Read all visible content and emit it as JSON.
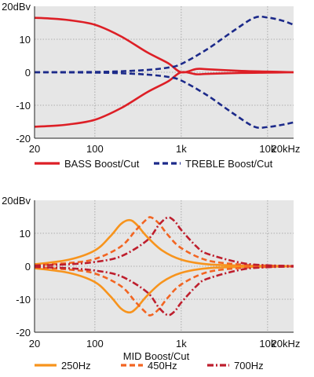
{
  "chart_data": [
    {
      "type": "line",
      "title": "",
      "xlabel": "",
      "ylabel": "",
      "x_scale": "log",
      "xlim": [
        20,
        20000
      ],
      "ylim": [
        -20,
        20
      ],
      "x_ticks": [
        20,
        100,
        1000,
        10000,
        20000
      ],
      "x_tick_labels": [
        "20",
        "100",
        "1k",
        "10k",
        "20kHz"
      ],
      "y_ticks": [
        20,
        10,
        0,
        -10,
        -20
      ],
      "y_tick_labels": [
        "20dBv",
        "10",
        "0",
        "-10",
        "-20"
      ],
      "grid": true,
      "legend_position": "below",
      "legend": [
        {
          "label": "BASS Boost/Cut",
          "color": "#dd1f26",
          "dash": "solid"
        },
        {
          "label": "TREBLE Boost/Cut",
          "color": "#1c2a8a",
          "dash": "dashed"
        }
      ],
      "series": [
        {
          "name": "BASS Boost/Cut",
          "color": "#dd1f26",
          "dash": "solid",
          "x": [
            20,
            30,
            50,
            100,
            200,
            400,
            700,
            1000,
            1500,
            2000,
            5000,
            10000,
            20000
          ],
          "y": [
            16.5,
            16.3,
            15.8,
            14.4,
            10.9,
            6.1,
            2.8,
            0.0,
            1.0,
            0.9,
            0.4,
            0.2,
            0.0
          ]
        },
        {
          "name": "BASS Boost/Cut",
          "color": "#dd1f26",
          "dash": "solid",
          "x": [
            20,
            30,
            50,
            100,
            200,
            400,
            700,
            1000,
            1500,
            2000,
            5000,
            10000,
            20000
          ],
          "y": [
            -16.5,
            -16.3,
            -15.8,
            -14.4,
            -10.9,
            -6.1,
            -2.8,
            0.0,
            -0.6,
            -0.5,
            -0.2,
            -0.1,
            0.0
          ]
        },
        {
          "name": "TREBLE Boost/Cut",
          "color": "#1c2a8a",
          "dash": "dashed",
          "x": [
            20,
            100,
            200,
            400,
            700,
            1000,
            2000,
            4000,
            7000,
            10000,
            15000,
            20000
          ],
          "y": [
            0.0,
            0.1,
            0.3,
            0.7,
            1.4,
            2.5,
            7.0,
            12.5,
            16.5,
            16.6,
            15.6,
            14.4
          ]
        },
        {
          "name": "TREBLE Boost/Cut",
          "color": "#1c2a8a",
          "dash": "dashed",
          "x": [
            20,
            100,
            200,
            400,
            700,
            1000,
            2000,
            4000,
            7000,
            10000,
            15000,
            20000
          ],
          "y": [
            0.0,
            -0.1,
            -0.3,
            -0.7,
            -1.4,
            -2.5,
            -7.0,
            -12.5,
            -16.5,
            -16.6,
            -15.9,
            -15.2
          ]
        }
      ]
    },
    {
      "type": "line",
      "title": "",
      "xlabel": "MID Boost/Cut",
      "ylabel": "",
      "x_scale": "log",
      "xlim": [
        20,
        20000
      ],
      "ylim": [
        -20,
        20
      ],
      "x_ticks": [
        20,
        100,
        1000,
        10000,
        20000
      ],
      "x_tick_labels": [
        "20",
        "100",
        "1k",
        "10k",
        "20kHz"
      ],
      "y_ticks": [
        20,
        10,
        0,
        -10,
        -20
      ],
      "y_tick_labels": [
        "20dBv",
        "10",
        "0",
        "-10",
        "-20"
      ],
      "grid": true,
      "legend_position": "below",
      "legend": [
        {
          "label": "250Hz",
          "color": "#f7941d",
          "dash": "solid"
        },
        {
          "label": "450Hz",
          "color": "#f26522",
          "dash": "dashed"
        },
        {
          "label": "700Hz",
          "color": "#be1e2d",
          "dash": "dashdot"
        }
      ],
      "series": [
        {
          "name": "250Hz",
          "color": "#f7941d",
          "dash": "solid",
          "x": [
            20,
            50,
            100,
            150,
            200,
            250,
            300,
            400,
            600,
            1000,
            2000,
            5000,
            10000,
            20000
          ],
          "y": [
            0.6,
            2.0,
            4.8,
            9.0,
            12.8,
            14.0,
            12.8,
            9.0,
            4.8,
            2.0,
            0.6,
            0.2,
            0.1,
            0.0
          ]
        },
        {
          "name": "250Hz",
          "color": "#f7941d",
          "dash": "solid",
          "x": [
            20,
            50,
            100,
            150,
            200,
            250,
            300,
            400,
            600,
            1000,
            2000,
            5000,
            10000,
            20000
          ],
          "y": [
            -0.6,
            -2.0,
            -4.8,
            -9.0,
            -12.8,
            -14.0,
            -12.8,
            -9.0,
            -4.8,
            -2.0,
            -0.6,
            -0.2,
            -0.1,
            0.0
          ]
        },
        {
          "name": "450Hz",
          "color": "#f26522",
          "dash": "dashed",
          "x": [
            20,
            50,
            100,
            200,
            300,
            400,
            450,
            550,
            700,
            1000,
            2000,
            5000,
            10000,
            20000
          ],
          "y": [
            0.3,
            1.0,
            2.2,
            6.0,
            11.0,
            14.3,
            14.8,
            13.0,
            9.5,
            5.5,
            1.8,
            0.5,
            0.2,
            0.0
          ]
        },
        {
          "name": "450Hz",
          "color": "#f26522",
          "dash": "dashed",
          "x": [
            20,
            50,
            100,
            200,
            300,
            400,
            450,
            550,
            700,
            1000,
            2000,
            5000,
            10000,
            20000
          ],
          "y": [
            -0.3,
            -1.0,
            -2.2,
            -6.0,
            -11.0,
            -14.3,
            -14.8,
            -13.0,
            -9.5,
            -5.5,
            -1.8,
            -0.5,
            -0.2,
            0.0
          ]
        },
        {
          "name": "700Hz",
          "color": "#be1e2d",
          "dash": "dashdot",
          "x": [
            20,
            50,
            100,
            200,
            400,
            550,
            700,
            850,
            1000,
            1500,
            2000,
            5000,
            10000,
            20000
          ],
          "y": [
            0.2,
            0.6,
            1.3,
            3.0,
            7.8,
            12.5,
            14.8,
            13.5,
            11.0,
            6.0,
            3.8,
            1.0,
            0.3,
            0.1
          ]
        },
        {
          "name": "700Hz",
          "color": "#be1e2d",
          "dash": "dashdot",
          "x": [
            20,
            50,
            100,
            200,
            400,
            550,
            700,
            850,
            1000,
            1500,
            2000,
            5000,
            10000,
            20000
          ],
          "y": [
            -0.2,
            -0.6,
            -1.3,
            -3.0,
            -7.8,
            -12.5,
            -14.8,
            -13.5,
            -11.0,
            -6.0,
            -3.8,
            -1.0,
            -0.3,
            -0.1
          ]
        }
      ]
    }
  ]
}
